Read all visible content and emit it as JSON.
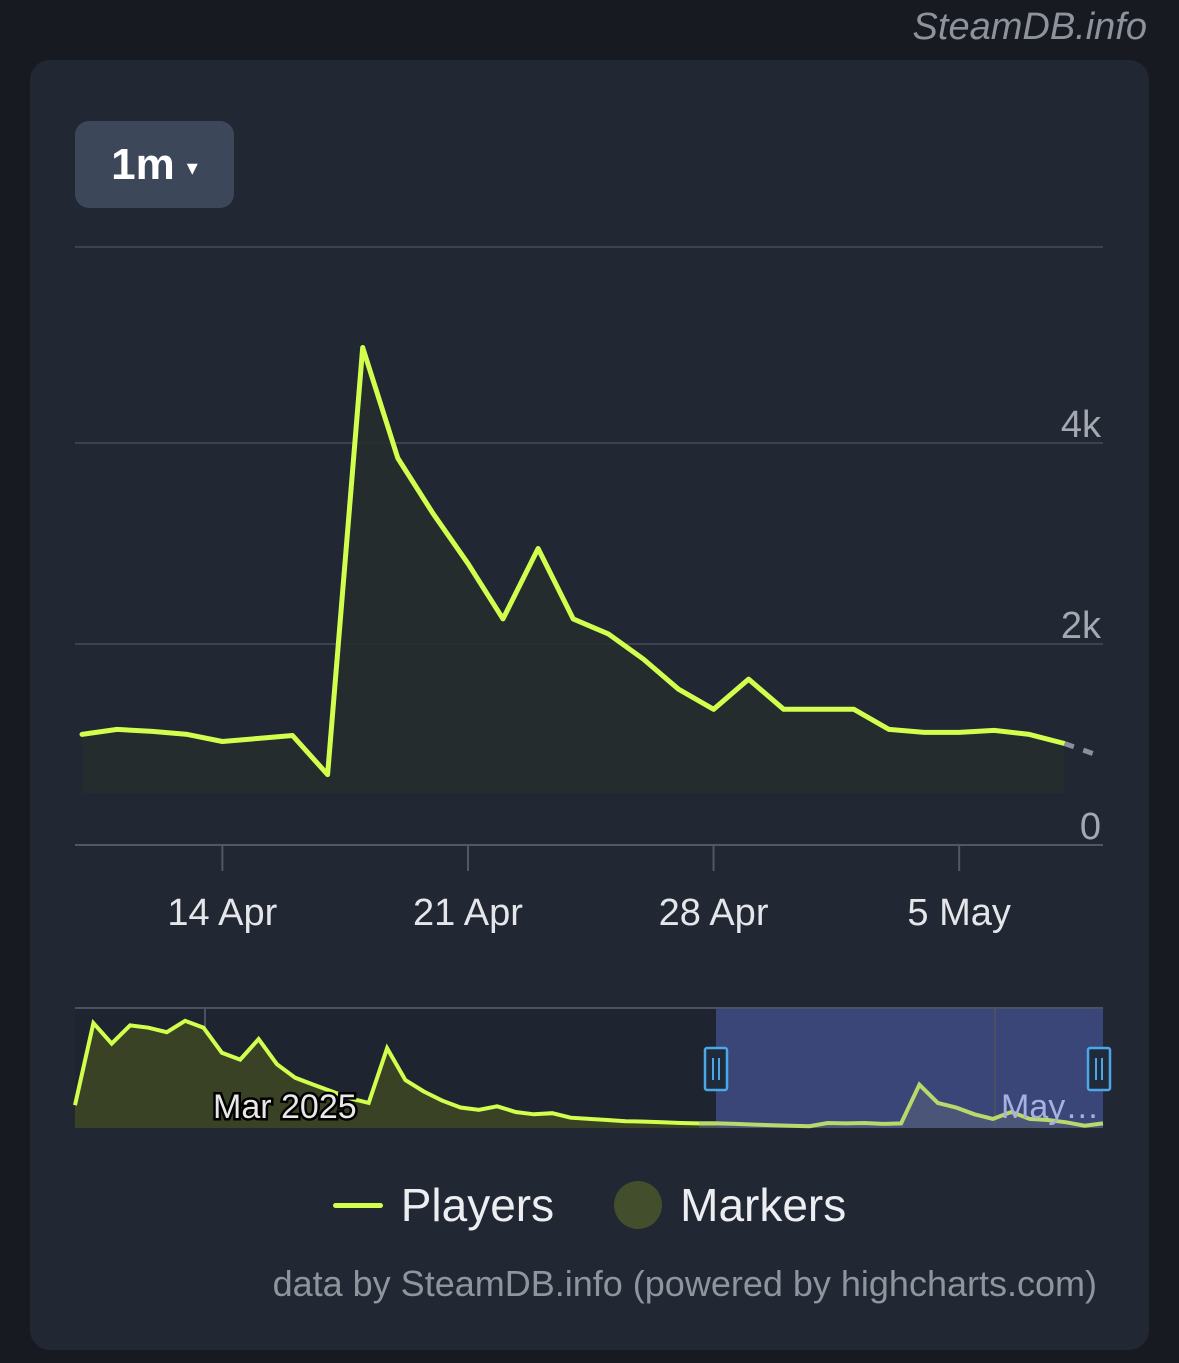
{
  "watermark": "SteamDB.info",
  "range_selector": {
    "label": "1m",
    "caret": "▾"
  },
  "legend": {
    "players": "Players",
    "markers": "Markers"
  },
  "credit": "data by SteamDB.info (powered by highcharts.com)",
  "colors": {
    "line": "#d2ff4d",
    "marker": "#434f2c",
    "navigator_window": "#3a4578",
    "handle": "#4aa8e8"
  },
  "chart_data": {
    "type": "line",
    "series": [
      {
        "name": "Players",
        "x": [
          "10 Apr",
          "11 Apr",
          "12 Apr",
          "13 Apr",
          "14 Apr",
          "15 Apr",
          "16 Apr",
          "17 Apr",
          "18 Apr",
          "19 Apr",
          "20 Apr",
          "21 Apr",
          "22 Apr",
          "23 Apr",
          "24 Apr",
          "25 Apr",
          "26 Apr",
          "27 Apr",
          "28 Apr",
          "29 Apr",
          "30 Apr",
          "1 May",
          "2 May",
          "3 May",
          "4 May",
          "5 May",
          "6 May",
          "7 May",
          "8 May"
        ],
        "values": [
          1100,
          1150,
          1130,
          1100,
          1030,
          1060,
          1090,
          700,
          4950,
          3850,
          3300,
          2800,
          2250,
          2950,
          2250,
          2100,
          1850,
          1550,
          1350,
          1650,
          1350,
          1350,
          1350,
          1150,
          1120,
          1120,
          1140,
          1100,
          1010
        ]
      }
    ],
    "ylim": [
      0,
      5950
    ],
    "yticks": [
      "0",
      "2k",
      "4k"
    ],
    "xticks": [
      "14 Apr",
      "21 Apr",
      "28 Apr",
      "5 May"
    ],
    "grid": true,
    "legend": "bottom",
    "navigator": {
      "labels": [
        "Mar 2025",
        "May…"
      ],
      "values": [
        100,
        460,
        370,
        450,
        440,
        420,
        470,
        440,
        330,
        300,
        390,
        280,
        220,
        190,
        160,
        130,
        110,
        350,
        210,
        160,
        120,
        90,
        80,
        95,
        70,
        60,
        65,
        45,
        40,
        35,
        30,
        28,
        25,
        22,
        20,
        20,
        18,
        15,
        12,
        10,
        8,
        22,
        20,
        22,
        18,
        20,
        190,
        110,
        90,
        60,
        40,
        70,
        40,
        35,
        25,
        10,
        20
      ],
      "window": [
        "10 Apr",
        "8 May"
      ]
    }
  }
}
